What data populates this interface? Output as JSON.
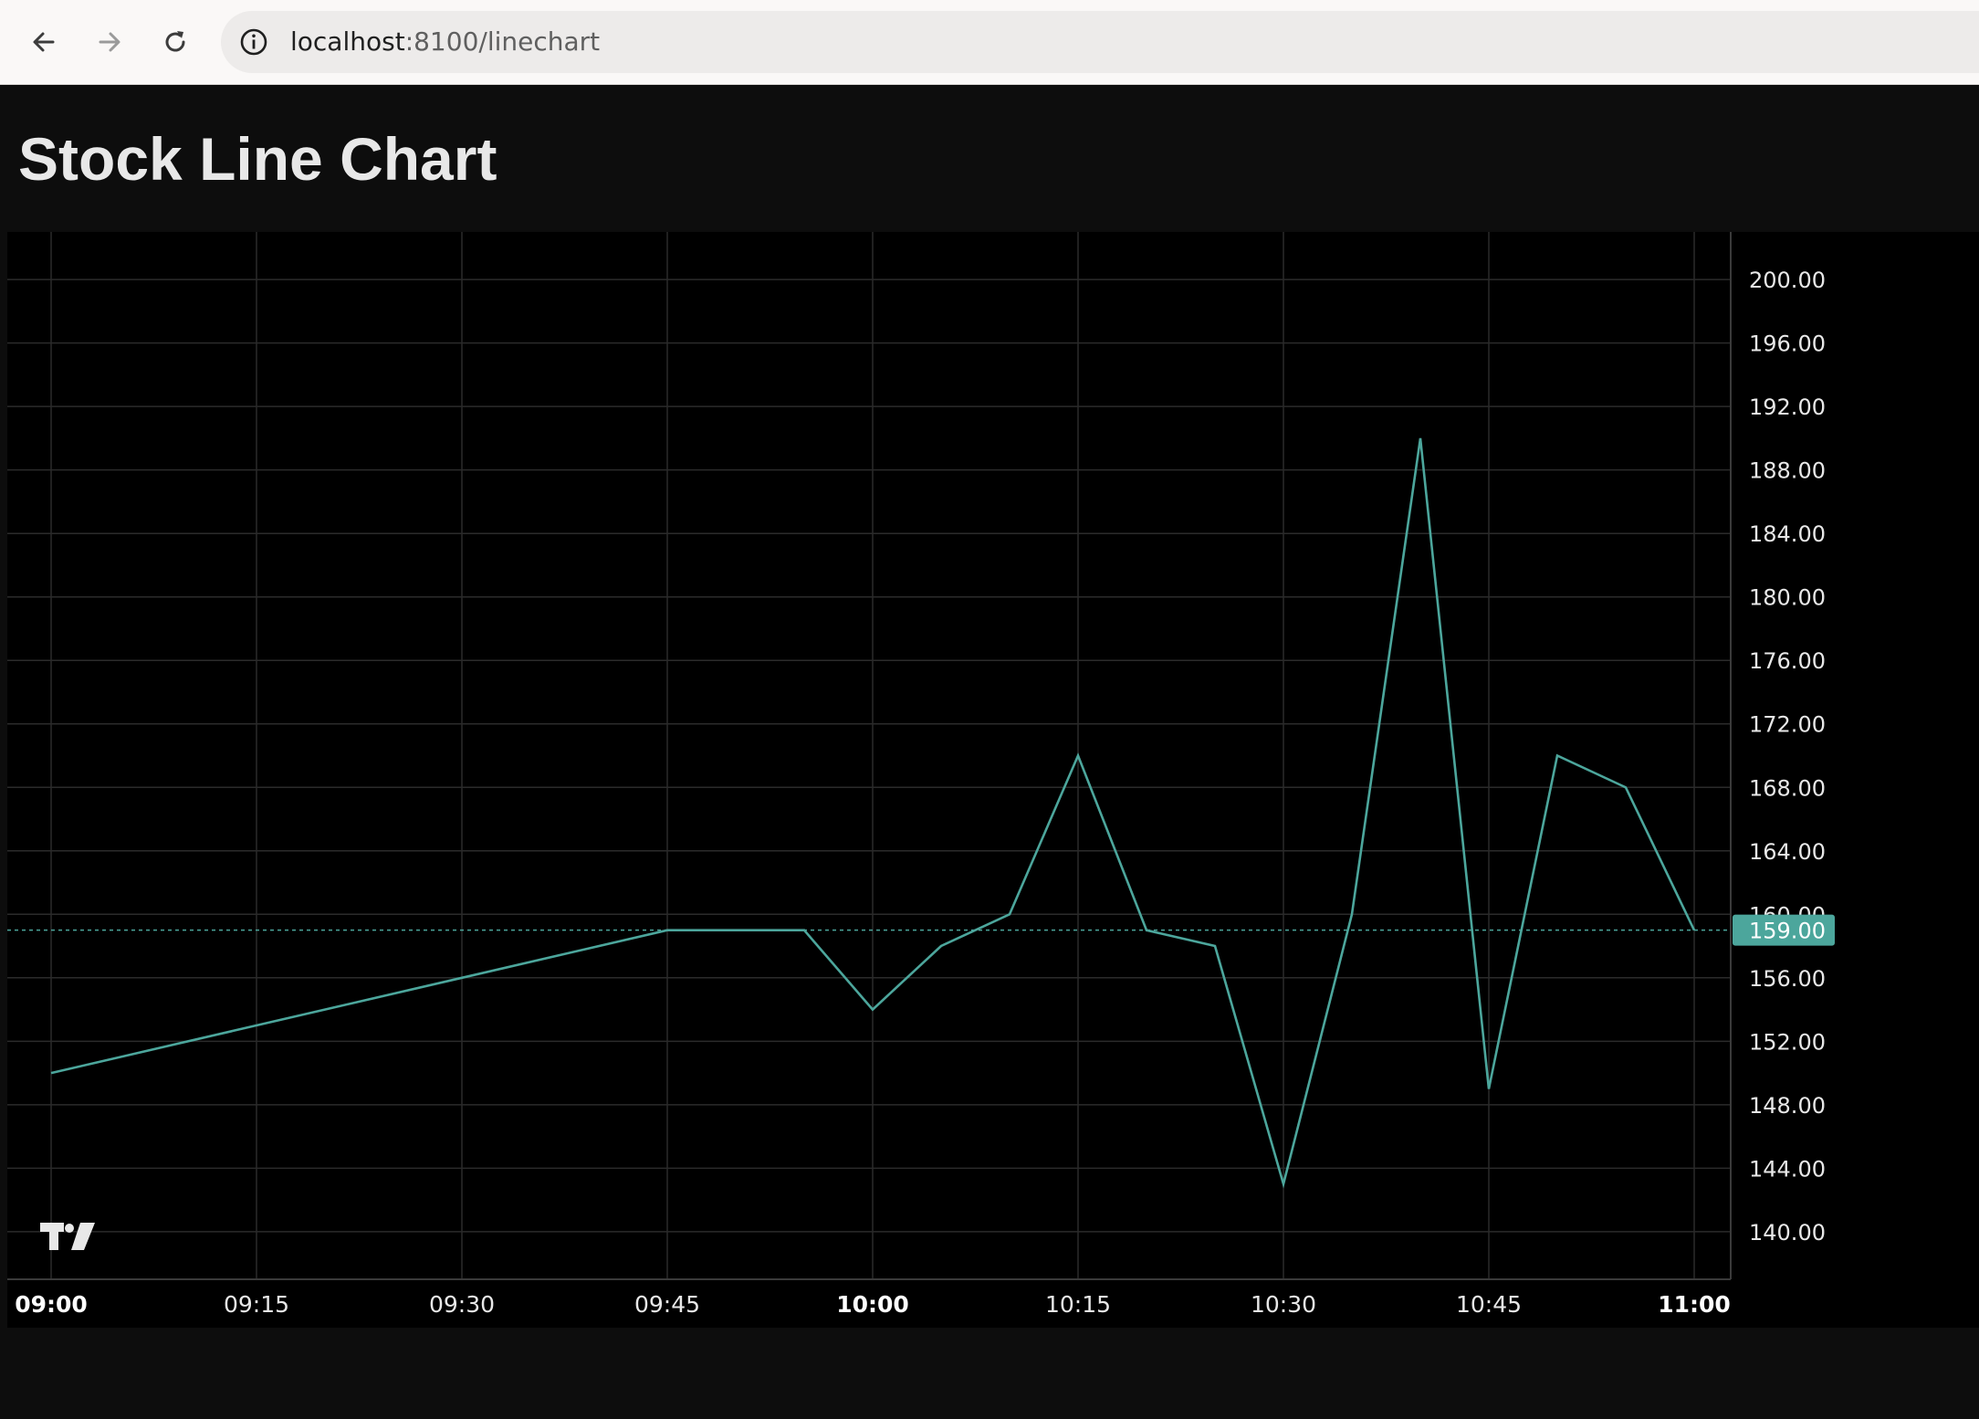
{
  "browser": {
    "url_host": "localhost",
    "url_rest": ":8100/linechart",
    "icons": [
      "back-arrow-icon",
      "forward-arrow-icon",
      "reload-icon",
      "info-icon"
    ]
  },
  "page": {
    "title": "Stock Line Chart"
  },
  "colors": {
    "line": "#4ca69c",
    "grid": "#2b2b2b",
    "background": "#000000",
    "price_label_bg": "#4ca69c"
  },
  "chart_data": {
    "type": "line",
    "title": "",
    "xlabel": "",
    "ylabel": "",
    "x": [
      "09:00",
      "09:45",
      "09:55",
      "10:00",
      "10:05",
      "10:10",
      "10:15",
      "10:20",
      "10:25",
      "10:30",
      "10:35",
      "10:40",
      "10:45",
      "10:50",
      "10:55",
      "11:00"
    ],
    "series": [
      {
        "values": [
          150,
          159,
          159,
          154,
          158,
          160,
          170,
          159,
          158,
          143,
          160,
          190,
          149,
          170,
          168,
          159
        ]
      }
    ],
    "x_ticks": [
      "09:00",
      "09:15",
      "09:30",
      "09:45",
      "10:00",
      "10:15",
      "10:30",
      "10:45",
      "11:00"
    ],
    "x_ticks_bold": [
      "09:00",
      "10:00",
      "11:00"
    ],
    "y_ticks": [
      "140.00",
      "144.00",
      "148.00",
      "152.00",
      "156.00",
      "160.00",
      "164.00",
      "168.00",
      "172.00",
      "176.00",
      "180.00",
      "184.00",
      "188.00",
      "192.00",
      "196.00",
      "200.00"
    ],
    "ylim": [
      137,
      203
    ],
    "xlim": [
      "09:00",
      "11:00"
    ],
    "last_price": "159.00",
    "grid": true,
    "axis_position": "right",
    "logo_icon": "tradingview-logo-icon"
  }
}
